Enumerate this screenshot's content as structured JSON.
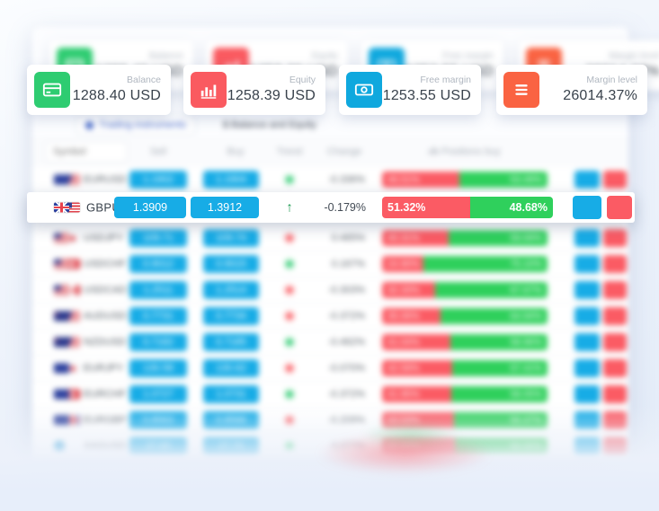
{
  "stat_cards": [
    {
      "label": "Balance",
      "value": "1288.40 USD",
      "icon": "credit-card-icon",
      "icon_bg": "#2ecc71"
    },
    {
      "label": "Equity",
      "value": "1258.39 USD",
      "icon": "bar-chart-icon",
      "icon_bg": "#fa5a60"
    },
    {
      "label": "Free margin",
      "value": "1253.55 USD",
      "icon": "banknote-icon",
      "icon_bg": "#0fa8de"
    },
    {
      "label": "Margin level",
      "value": "26014.37%",
      "icon": "menu-icon",
      "icon_bg": "#fa6342"
    }
  ],
  "tabs": [
    {
      "label": "Trading instruments",
      "active": true
    },
    {
      "label": "$ Balance and Equity",
      "active": false
    }
  ],
  "table": {
    "filter_placeholder": "Symbol",
    "headers": {
      "symbol": "Symbol",
      "sell": "Sell",
      "buy": "Buy",
      "trend": "Trend",
      "change": "Change",
      "positions": "Positions buy"
    },
    "rows": [
      {
        "symbol": "EURUSD",
        "flags": [
          "eu",
          "us"
        ],
        "sell": "1.1902",
        "buy": "1.1904",
        "trend": "up",
        "change": "-0.336%",
        "sell_pct": 46.51,
        "buy_pct": 53.49,
        "sell_pct_label": "46.51%",
        "buy_pct_label": "53.49%",
        "focused": false
      },
      {
        "symbol": "GBPUSD",
        "flags": [
          "gb",
          "us"
        ],
        "sell": "1.3909",
        "buy": "1.3912",
        "trend": "up-arrow",
        "change": "-0.179%",
        "sell_pct": 51.32,
        "buy_pct": 48.68,
        "sell_pct_label": "51.32%",
        "buy_pct_label": "48.68%",
        "focused": true
      },
      {
        "symbol": "USDJPY",
        "flags": [
          "us",
          "jp"
        ],
        "sell": "109.71",
        "buy": "109.74",
        "trend": "down",
        "change": "0.465%",
        "sell_pct": 40.31,
        "buy_pct": 59.69,
        "sell_pct_label": "40.31%",
        "buy_pct_label": "59.69%",
        "focused": false
      },
      {
        "symbol": "USDCHF",
        "flags": [
          "us",
          "ch"
        ],
        "sell": "0.9012",
        "buy": "0.9015",
        "trend": "up",
        "change": "0.167%",
        "sell_pct": 24.9,
        "buy_pct": 75.1,
        "sell_pct_label": "24.90%",
        "buy_pct_label": "75.10%",
        "focused": false
      },
      {
        "symbol": "USDCAD",
        "flags": [
          "us",
          "ca"
        ],
        "sell": "1.2511",
        "buy": "1.2514",
        "trend": "down",
        "change": "-0.303%",
        "sell_pct": 32.33,
        "buy_pct": 67.67,
        "sell_pct_label": "32.33%",
        "buy_pct_label": "67.67%",
        "focused": false
      },
      {
        "symbol": "AUDUSD",
        "flags": [
          "au",
          "us"
        ],
        "sell": "0.7731",
        "buy": "0.7734",
        "trend": "down",
        "change": "-0.372%",
        "sell_pct": 35.06,
        "buy_pct": 64.94,
        "sell_pct_label": "35.06%",
        "buy_pct_label": "64.94%",
        "focused": false
      },
      {
        "symbol": "NZDUSD",
        "flags": [
          "nz",
          "us"
        ],
        "sell": "0.7182",
        "buy": "0.7185",
        "trend": "up",
        "change": "-0.462%",
        "sell_pct": 41.04,
        "buy_pct": 58.96,
        "sell_pct_label": "41.04%",
        "buy_pct_label": "58.96%",
        "focused": false
      },
      {
        "symbol": "EURJPY",
        "flags": [
          "eu",
          "jp"
        ],
        "sell": "130.58",
        "buy": "130.62",
        "trend": "down",
        "change": "-0.070%",
        "sell_pct": 42.59,
        "buy_pct": 57.41,
        "sell_pct_label": "42.59%",
        "buy_pct_label": "57.41%",
        "focused": false
      },
      {
        "symbol": "EURCHF",
        "flags": [
          "eu",
          "ch"
        ],
        "sell": "1.0727",
        "buy": "1.0731",
        "trend": "up",
        "change": "-0.372%",
        "sell_pct": 41.95,
        "buy_pct": 58.05,
        "sell_pct_label": "41.95%",
        "buy_pct_label": "58.05%",
        "focused": false
      },
      {
        "symbol": "EURGBP",
        "flags": [
          "eu",
          "gb"
        ],
        "sell": "0.8563",
        "buy": "0.8566",
        "trend": "down",
        "change": "-0.209%",
        "sell_pct": 43.53,
        "buy_pct": 56.47,
        "sell_pct_label": "43.53%",
        "buy_pct_label": "56.47%",
        "focused": false
      },
      {
        "symbol": "XAGUSD",
        "flags": [
          "xag"
        ],
        "sell": "27.65",
        "buy": "27.70",
        "trend": "up",
        "change": "0.077%",
        "sell_pct": 44.0,
        "buy_pct": 56.0,
        "sell_pct_label": "44.00%",
        "buy_pct_label": "56.00%",
        "focused": false
      }
    ]
  },
  "colors": {
    "price_button_blue": "#17ace6",
    "bar_red": "#fb5b64",
    "bar_green": "#2fd05c",
    "card_icon_green": "#2ecc71",
    "card_icon_red": "#fa5a60",
    "card_icon_blue": "#0fa8de",
    "card_icon_orange": "#fa6342",
    "trend_up": "#2ecc71",
    "trend_down": "#fa5a60"
  }
}
